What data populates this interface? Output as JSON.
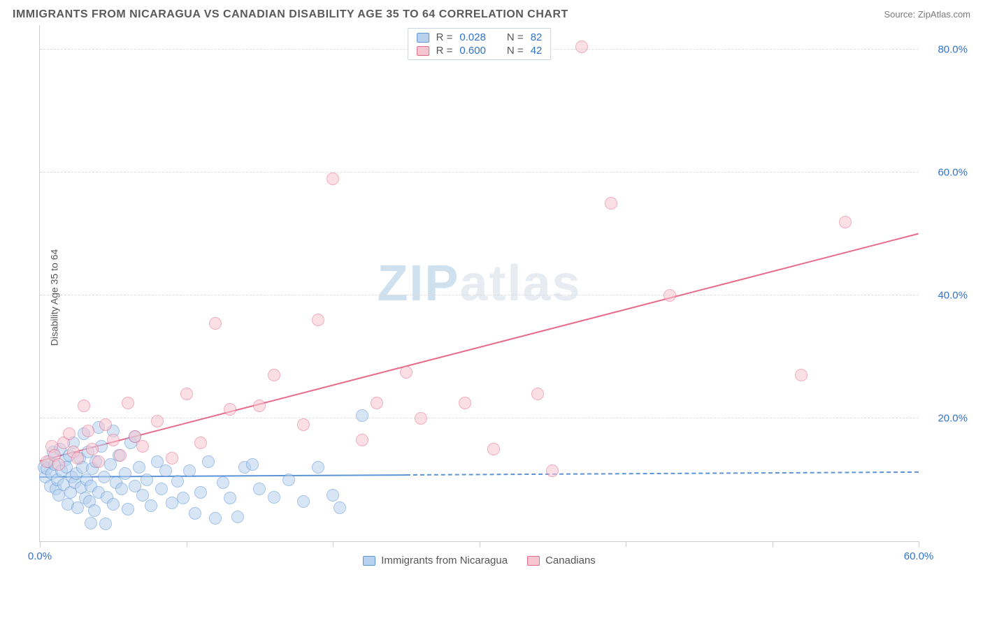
{
  "title": "IMMIGRANTS FROM NICARAGUA VS CANADIAN DISABILITY AGE 35 TO 64 CORRELATION CHART",
  "source": "Source: ZipAtlas.com",
  "y_axis_label": "Disability Age 35 to 64",
  "watermark": {
    "part1": "ZIP",
    "part2": "atlas"
  },
  "chart": {
    "type": "scatter",
    "xlim": [
      0,
      60
    ],
    "ylim": [
      0,
      84
    ],
    "x_ticks": [
      0,
      10,
      20,
      30,
      40,
      50,
      60
    ],
    "x_tick_labels": [
      "0.0%",
      "",
      "",
      "",
      "",
      "",
      "60.0%"
    ],
    "y_ticks": [
      20,
      40,
      60,
      80
    ],
    "y_tick_labels": [
      "20.0%",
      "40.0%",
      "60.0%",
      "80.0%"
    ],
    "background_color": "#ffffff",
    "grid_color": "#dddddd",
    "axis_color": "#cccccc",
    "tick_label_color": "#2f73c9",
    "marker_radius": 9,
    "series": [
      {
        "name": "Immigrants from Nicaragua",
        "fill": "#b7d1ee",
        "stroke": "#5d94d6",
        "fill_opacity": 0.55,
        "R": "0.028",
        "N": "82",
        "trend": {
          "x1": 0,
          "y1": 10.4,
          "x2": 60,
          "y2": 11.2,
          "solid_until_x": 25
        },
        "points": [
          [
            0.3,
            12.0
          ],
          [
            0.4,
            10.5
          ],
          [
            0.5,
            11.8
          ],
          [
            0.6,
            13.0
          ],
          [
            0.7,
            9.0
          ],
          [
            0.8,
            11.0
          ],
          [
            0.9,
            14.5
          ],
          [
            1.0,
            12.5
          ],
          [
            1.1,
            8.5
          ],
          [
            1.2,
            10.0
          ],
          [
            1.3,
            7.5
          ],
          [
            1.4,
            15.0
          ],
          [
            1.5,
            11.5
          ],
          [
            1.6,
            9.2
          ],
          [
            1.7,
            13.2
          ],
          [
            1.8,
            12.0
          ],
          [
            1.9,
            6.0
          ],
          [
            2.0,
            14.0
          ],
          [
            2.1,
            8.0
          ],
          [
            2.2,
            10.5
          ],
          [
            2.3,
            16.0
          ],
          [
            2.4,
            9.5
          ],
          [
            2.5,
            11.0
          ],
          [
            2.6,
            5.5
          ],
          [
            2.7,
            13.5
          ],
          [
            2.8,
            8.8
          ],
          [
            2.9,
            12.0
          ],
          [
            3.0,
            17.5
          ],
          [
            3.1,
            7.0
          ],
          [
            3.2,
            10.0
          ],
          [
            3.3,
            14.5
          ],
          [
            3.4,
            6.5
          ],
          [
            3.5,
            9.0
          ],
          [
            3.6,
            11.8
          ],
          [
            3.7,
            5.0
          ],
          [
            3.8,
            13.0
          ],
          [
            4.0,
            8.0
          ],
          [
            4.2,
            15.5
          ],
          [
            4.4,
            10.5
          ],
          [
            4.6,
            7.2
          ],
          [
            4.8,
            12.5
          ],
          [
            5.0,
            6.0
          ],
          [
            5.2,
            9.5
          ],
          [
            5.4,
            14.0
          ],
          [
            5.6,
            8.5
          ],
          [
            5.8,
            11.0
          ],
          [
            6.0,
            5.2
          ],
          [
            6.2,
            16.0
          ],
          [
            6.5,
            9.0
          ],
          [
            6.8,
            12.0
          ],
          [
            7.0,
            7.5
          ],
          [
            7.3,
            10.0
          ],
          [
            7.6,
            5.8
          ],
          [
            8.0,
            13.0
          ],
          [
            8.3,
            8.5
          ],
          [
            8.6,
            11.5
          ],
          [
            9.0,
            6.2
          ],
          [
            9.4,
            9.8
          ],
          [
            9.8,
            7.0
          ],
          [
            10.2,
            11.5
          ],
          [
            10.6,
            4.5
          ],
          [
            11.0,
            8.0
          ],
          [
            11.5,
            13.0
          ],
          [
            12.0,
            3.8
          ],
          [
            12.5,
            9.5
          ],
          [
            13.0,
            7.0
          ],
          [
            14.0,
            12.0
          ],
          [
            15.0,
            8.5
          ],
          [
            16.0,
            7.2
          ],
          [
            17.0,
            10.0
          ],
          [
            18.0,
            6.5
          ],
          [
            19.0,
            12.0
          ],
          [
            20.0,
            7.5
          ],
          [
            20.5,
            5.5
          ],
          [
            14.5,
            12.5
          ],
          [
            6.5,
            17.0
          ],
          [
            5.0,
            18.0
          ],
          [
            22.0,
            20.5
          ],
          [
            4.0,
            18.5
          ],
          [
            3.5,
            3.0
          ],
          [
            4.5,
            2.8
          ],
          [
            13.5,
            4.0
          ]
        ]
      },
      {
        "name": "Canadians",
        "fill": "#f6c6d1",
        "stroke": "#e86b8a",
        "fill_opacity": 0.55,
        "R": "0.600",
        "N": "42",
        "trend": {
          "x1": 0,
          "y1": 13.0,
          "x2": 60,
          "y2": 50.0,
          "solid_until_x": 60
        },
        "points": [
          [
            0.5,
            13.0
          ],
          [
            0.8,
            15.5
          ],
          [
            1.0,
            14.0
          ],
          [
            1.3,
            12.5
          ],
          [
            1.6,
            16.0
          ],
          [
            2.0,
            17.5
          ],
          [
            2.3,
            14.5
          ],
          [
            2.6,
            13.5
          ],
          [
            3.0,
            22.0
          ],
          [
            3.3,
            18.0
          ],
          [
            3.6,
            15.0
          ],
          [
            4.0,
            13.0
          ],
          [
            4.5,
            19.0
          ],
          [
            5.0,
            16.5
          ],
          [
            5.5,
            14.0
          ],
          [
            6.0,
            22.5
          ],
          [
            6.5,
            17.0
          ],
          [
            7.0,
            15.5
          ],
          [
            8.0,
            19.5
          ],
          [
            9.0,
            13.5
          ],
          [
            10.0,
            24.0
          ],
          [
            11.0,
            16.0
          ],
          [
            12.0,
            35.5
          ],
          [
            13.0,
            21.5
          ],
          [
            15.0,
            22.0
          ],
          [
            16.0,
            27.0
          ],
          [
            18.0,
            19.0
          ],
          [
            19.0,
            36.0
          ],
          [
            20.0,
            59.0
          ],
          [
            22.0,
            16.5
          ],
          [
            23.0,
            22.5
          ],
          [
            25.0,
            27.5
          ],
          [
            26.0,
            20.0
          ],
          [
            29.0,
            22.5
          ],
          [
            31.0,
            15.0
          ],
          [
            34.0,
            24.0
          ],
          [
            35.0,
            11.5
          ],
          [
            37.0,
            80.5
          ],
          [
            39.0,
            55.0
          ],
          [
            43.0,
            40.0
          ],
          [
            52.0,
            27.0
          ],
          [
            55.0,
            52.0
          ]
        ]
      }
    ]
  },
  "legend_top_labels": {
    "R": "R =",
    "N": "N ="
  },
  "legend_bottom": [
    {
      "label": "Immigrants from Nicaragua",
      "fill": "#b7d1ee",
      "stroke": "#5d94d6"
    },
    {
      "label": "Canadians",
      "fill": "#f6c6d1",
      "stroke": "#e86b8a"
    }
  ]
}
